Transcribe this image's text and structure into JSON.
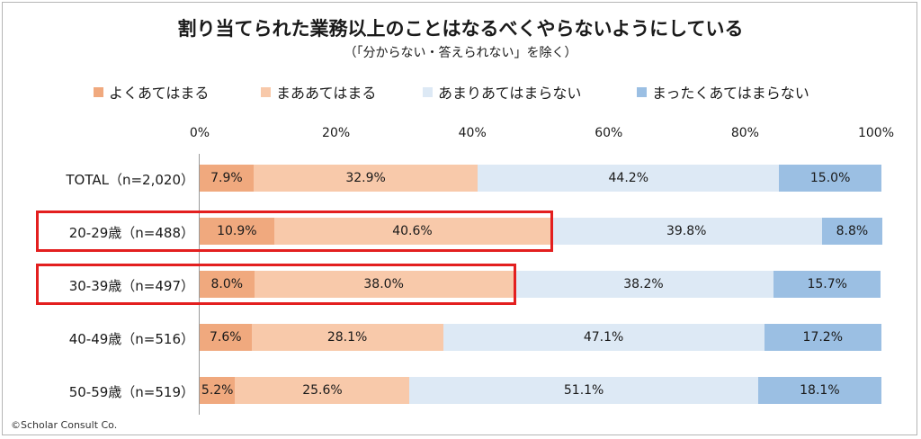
{
  "chart_data": {
    "type": "bar",
    "orientation": "horizontal-stacked-100",
    "title": "割り当てられた業務以上のことはなるべくやらないようにしている",
    "subtitle": "（「分からない・答えられない」を除く）",
    "legend_position": "top",
    "x_ticks": [
      "0%",
      "20%",
      "40%",
      "60%",
      "80%",
      "100%"
    ],
    "xlim": [
      0,
      100
    ],
    "categories": [
      "TOTAL（n=2,020）",
      "20-29歳（n=488）",
      "30-39歳（n=497）",
      "40-49歳（n=516）",
      "50-59歳（n=519）"
    ],
    "series": [
      {
        "name": "よくあてはまる",
        "color": "#f0a97e",
        "values": [
          7.9,
          10.9,
          8.0,
          7.6,
          5.2
        ],
        "labels": [
          "7.9%",
          "10.9%",
          "8.0%",
          "7.6%",
          "5.2%"
        ]
      },
      {
        "name": "まああてはまる",
        "color": "#f8c9aa",
        "values": [
          32.9,
          40.6,
          38.0,
          28.1,
          25.6
        ],
        "labels": [
          "32.9%",
          "40.6%",
          "38.0%",
          "28.1%",
          "25.6%"
        ]
      },
      {
        "name": "あまりあてはまらない",
        "color": "#dde9f5",
        "values": [
          44.2,
          39.8,
          38.2,
          47.1,
          51.1
        ],
        "labels": [
          "44.2%",
          "39.8%",
          "38.2%",
          "47.1%",
          "51.1%"
        ]
      },
      {
        "name": "まったくあてはまらない",
        "color": "#9bbfe3",
        "values": [
          15.0,
          8.8,
          15.7,
          17.2,
          18.1
        ],
        "labels": [
          "15.0%",
          "8.8%",
          "15.7%",
          "17.2%",
          "18.1%"
        ]
      }
    ],
    "highlighted_rows": [
      1,
      2
    ],
    "highlight_color": "#e31f1f"
  },
  "copyright": "©Scholar Consult Co."
}
